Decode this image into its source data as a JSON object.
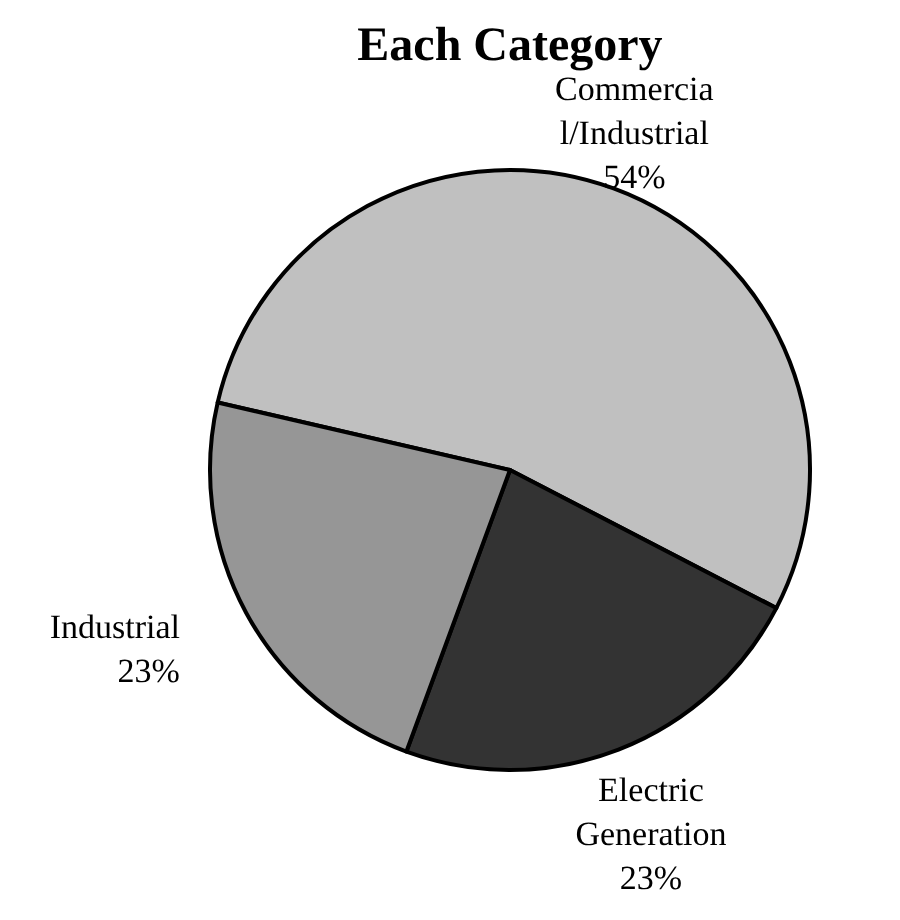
{
  "chart_data": {
    "type": "pie",
    "title": "Each Category",
    "categories": [
      "Commercial/Industrial",
      "Electric Generation",
      "Industrial"
    ],
    "values": [
      54,
      23,
      23
    ],
    "colors": [
      "#c0c0c0",
      "#333333",
      "#969696"
    ],
    "value_labels": [
      "54%",
      "23%",
      "23%"
    ]
  }
}
